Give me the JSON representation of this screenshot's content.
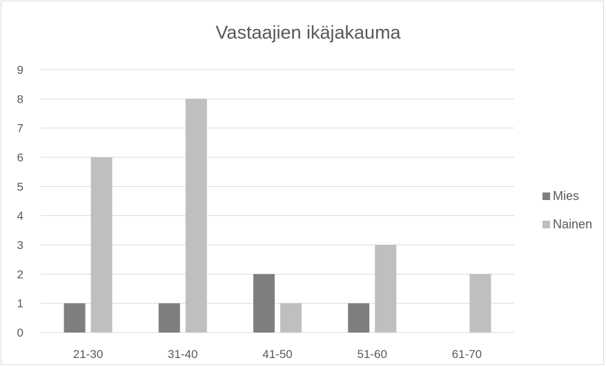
{
  "chart_data": {
    "type": "bar",
    "title": "Vastaajien ikäjakauma",
    "xlabel": "",
    "ylabel": "",
    "categories": [
      "21-30",
      "31-40",
      "41-50",
      "51-60",
      "61-70"
    ],
    "series": [
      {
        "name": "Mies",
        "color": "#7f7f7f",
        "values": [
          1,
          1,
          2,
          1,
          null
        ]
      },
      {
        "name": "Nainen",
        "color": "#bfbfbf",
        "values": [
          6,
          8,
          1,
          3,
          2
        ]
      }
    ],
    "ylim": [
      0,
      9
    ],
    "yticks": [
      0,
      1,
      2,
      3,
      4,
      5,
      6,
      7,
      8,
      9
    ],
    "grid": true,
    "legend_position": "right",
    "data_labels": false
  }
}
